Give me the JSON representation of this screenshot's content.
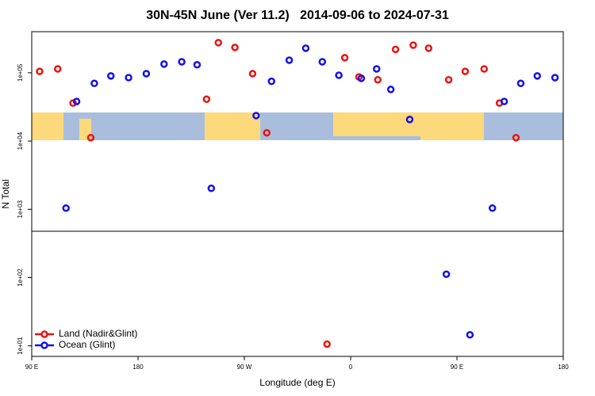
{
  "chart_data": {
    "type": "scatter",
    "title": "30N-45N June (Ver 11.2)   2014-09-06 to 2024-07-31",
    "x_label": "Longitude (deg E)",
    "y_label": "N Total",
    "xlim": [
      90,
      540
    ],
    "xticks": [
      {
        "value": 90,
        "label": "90 E"
      },
      {
        "value": 180,
        "label": "180"
      },
      {
        "value": 270,
        "label": "90 W"
      },
      {
        "value": 360,
        "label": "0"
      },
      {
        "value": 450,
        "label": "90 E"
      },
      {
        "value": 540,
        "label": "180"
      }
    ],
    "ylim": [
      7,
      400000
    ],
    "y_log": true,
    "yticks": [
      {
        "value": 10,
        "label": "1e+01"
      },
      {
        "value": 100,
        "label": "1e+02"
      },
      {
        "value": 1000,
        "label": "1e+03"
      },
      {
        "value": 10000,
        "label": "1e+04"
      },
      {
        "value": 100000,
        "label": "1e+05"
      }
    ],
    "legend": "bottom-left",
    "series": [
      {
        "name": "Land (Nadir&Glint)",
        "color": "#ee1111",
        "x": [
          96.7,
          112,
          125,
          140,
          238,
          248,
          262,
          277,
          289,
          340,
          355,
          367,
          383,
          398,
          413,
          426,
          443,
          457,
          473,
          486,
          500
        ],
        "values": [
          105000,
          114000,
          36000,
          11200,
          41000,
          276000,
          235000,
          97000,
          13200,
          10.6,
          166000,
          87000,
          79000,
          220000,
          254000,
          229000,
          79000,
          105000,
          114000,
          36000,
          11200
        ]
      },
      {
        "name": "Ocean (Glint)",
        "color": "#1111ee",
        "x": [
          119,
          128,
          143,
          157,
          172,
          187,
          202,
          217,
          230,
          242,
          280,
          293,
          308,
          322,
          336,
          350,
          369,
          382,
          394,
          410,
          441,
          461,
          480,
          490,
          504,
          518,
          533
        ],
        "values": [
          1040,
          38000,
          70000,
          90000,
          85000,
          97000,
          134000,
          145000,
          131000,
          2030,
          23600,
          75000,
          153000,
          229000,
          145000,
          92000,
          83000,
          114000,
          57000,
          20700,
          112,
          14.5,
          1040,
          38000,
          70000,
          90000,
          85000
        ]
      }
    ]
  }
}
